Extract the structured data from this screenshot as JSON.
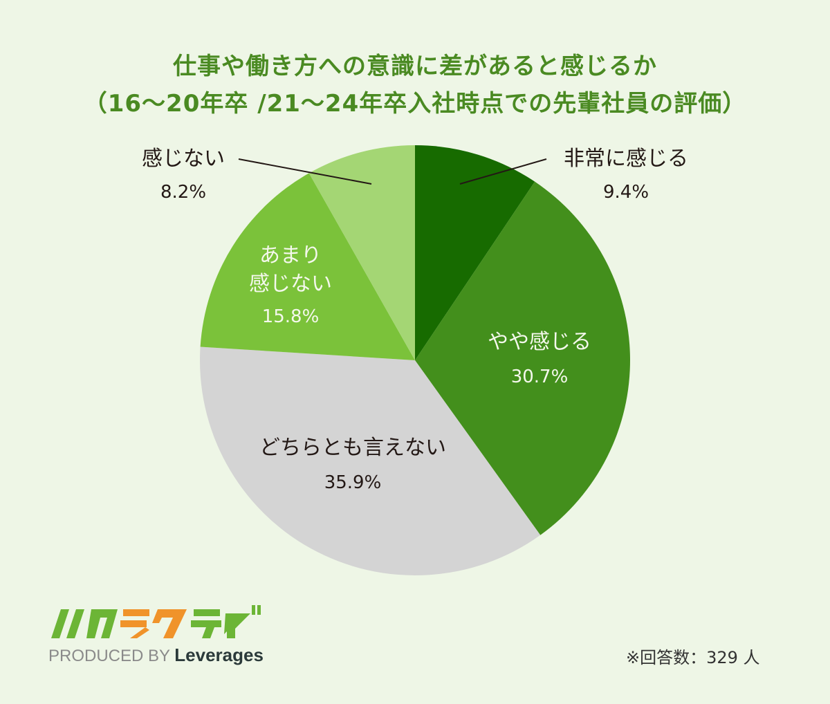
{
  "title": {
    "line1": "仕事や働き方への意識に差があると感じるか",
    "line2": "（16～20年卒 /21～24年卒入社時点での先輩社員の評価）"
  },
  "labels": {
    "very": {
      "name": "非常に感じる",
      "pct": "9.4%"
    },
    "somewhat": {
      "name": "やや感じる",
      "pct": "30.7%"
    },
    "neutral": {
      "name": "どちらとも言えない",
      "pct": "35.9%"
    },
    "notmuch_1": "あまり",
    "notmuch_2": "感じない",
    "notmuch_pct": "15.8%",
    "not": {
      "name": "感じない",
      "pct": "8.2%"
    }
  },
  "logo": {
    "brand": "ハタラクティブ",
    "produced_by": "PRODUCED BY",
    "company": "Leverages"
  },
  "note": "※回答数：329 人",
  "chart_data": {
    "type": "pie",
    "title": "仕事や働き方への意識に差があると感じるか（16～20年卒 /21～24年卒入社時点での先輩社員の評価）",
    "categories": [
      "非常に感じる",
      "やや感じる",
      "どちらとも言えない",
      "あまり感じない",
      "感じない"
    ],
    "values": [
      9.4,
      30.7,
      35.9,
      15.8,
      8.2
    ],
    "colors": [
      "#176b00",
      "#438f1c",
      "#d4d4d4",
      "#7bc23a",
      "#a4d674"
    ],
    "start_angle": "12 o'clock, clockwise",
    "n_respondents": 329,
    "unit": "%"
  }
}
